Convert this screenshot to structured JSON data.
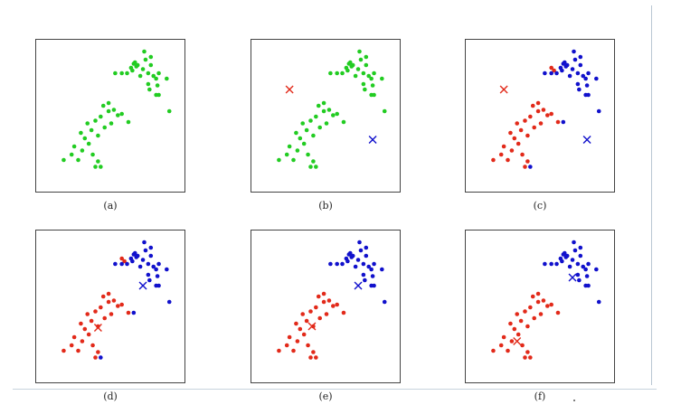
{
  "colors": {
    "green": "#22cc22",
    "red": "#e22a1a",
    "blue": "#1111cc",
    "frame": "#444444"
  },
  "chart_data": [
    {
      "type": "scatter",
      "panel": "a",
      "caption": "(a)",
      "series": [
        {
          "color": "green",
          "points": "cluster_all"
        }
      ],
      "centroids": []
    },
    {
      "type": "scatter",
      "panel": "b",
      "caption": "(b)",
      "series": [
        {
          "color": "green",
          "points": "cluster_all"
        }
      ],
      "centroids": [
        {
          "color": "red",
          "x": 0.22,
          "y": 0.7
        },
        {
          "color": "blue",
          "x": 0.85,
          "y": 0.33
        }
      ]
    },
    {
      "type": "scatter",
      "panel": "c",
      "caption": "(c)",
      "series": [
        {
          "color": "red",
          "points": "c_red"
        },
        {
          "color": "blue",
          "points": "c_blue"
        }
      ],
      "centroids": [
        {
          "color": "red",
          "x": 0.22,
          "y": 0.7
        },
        {
          "color": "blue",
          "x": 0.85,
          "y": 0.33
        }
      ]
    },
    {
      "type": "scatter",
      "panel": "d",
      "caption": "(d)",
      "series": [
        {
          "color": "red",
          "points": "c_red"
        },
        {
          "color": "blue",
          "points": "c_blue"
        }
      ],
      "centroids": [
        {
          "color": "red",
          "x": 0.4,
          "y": 0.35
        },
        {
          "color": "blue",
          "x": 0.74,
          "y": 0.66
        }
      ]
    },
    {
      "type": "scatter",
      "panel": "e",
      "caption": "(e)",
      "series": [
        {
          "color": "red",
          "points": "final_red"
        },
        {
          "color": "blue",
          "points": "final_blue"
        }
      ],
      "centroids": [
        {
          "color": "red",
          "x": 0.39,
          "y": 0.36
        },
        {
          "color": "blue",
          "x": 0.74,
          "y": 0.66
        }
      ]
    },
    {
      "type": "scatter",
      "panel": "f",
      "caption": "(f)",
      "series": [
        {
          "color": "red",
          "points": "final_red"
        },
        {
          "color": "blue",
          "points": "final_blue"
        }
      ],
      "centroids": [
        {
          "color": "red",
          "x": 0.32,
          "y": 0.25
        },
        {
          "color": "blue",
          "x": 0.74,
          "y": 0.72
        }
      ]
    }
  ],
  "point_sets": {
    "lower": [
      [
        0.14,
        0.18
      ],
      [
        0.2,
        0.22
      ],
      [
        0.22,
        0.28
      ],
      [
        0.25,
        0.18
      ],
      [
        0.28,
        0.25
      ],
      [
        0.3,
        0.34
      ],
      [
        0.33,
        0.3
      ],
      [
        0.35,
        0.4
      ],
      [
        0.38,
        0.47
      ],
      [
        0.4,
        0.36
      ],
      [
        0.42,
        0.5
      ],
      [
        0.45,
        0.42
      ],
      [
        0.48,
        0.54
      ],
      [
        0.5,
        0.45
      ],
      [
        0.52,
        0.55
      ],
      [
        0.55,
        0.51
      ],
      [
        0.58,
        0.52
      ],
      [
        0.32,
        0.45
      ],
      [
        0.36,
        0.22
      ],
      [
        0.4,
        0.17
      ],
      [
        0.38,
        0.13
      ],
      [
        0.42,
        0.13
      ],
      [
        0.27,
        0.38
      ],
      [
        0.48,
        0.6
      ],
      [
        0.44,
        0.58
      ],
      [
        0.63,
        0.46
      ]
    ],
    "upper": [
      [
        0.53,
        0.82
      ],
      [
        0.58,
        0.82
      ],
      [
        0.62,
        0.82
      ],
      [
        0.65,
        0.86
      ],
      [
        0.68,
        0.9
      ],
      [
        0.66,
        0.84
      ],
      [
        0.7,
        0.88
      ],
      [
        0.72,
        0.8
      ],
      [
        0.74,
        0.85
      ],
      [
        0.76,
        0.92
      ],
      [
        0.78,
        0.82
      ],
      [
        0.8,
        0.88
      ],
      [
        0.82,
        0.8
      ],
      [
        0.84,
        0.78
      ],
      [
        0.86,
        0.82
      ],
      [
        0.79,
        0.7
      ],
      [
        0.84,
        0.66
      ],
      [
        0.78,
        0.74
      ],
      [
        0.92,
        0.78
      ],
      [
        0.85,
        0.73
      ],
      [
        0.75,
        0.98
      ],
      [
        0.8,
        0.94
      ],
      [
        0.67,
        0.89
      ],
      [
        0.69,
        0.87
      ],
      [
        0.94,
        0.54
      ],
      [
        0.86,
        0.66
      ]
    ],
    "mixed_blue_from_lower": [
      [
        0.67,
        0.46
      ],
      [
        0.42,
        0.13
      ]
    ]
  }
}
